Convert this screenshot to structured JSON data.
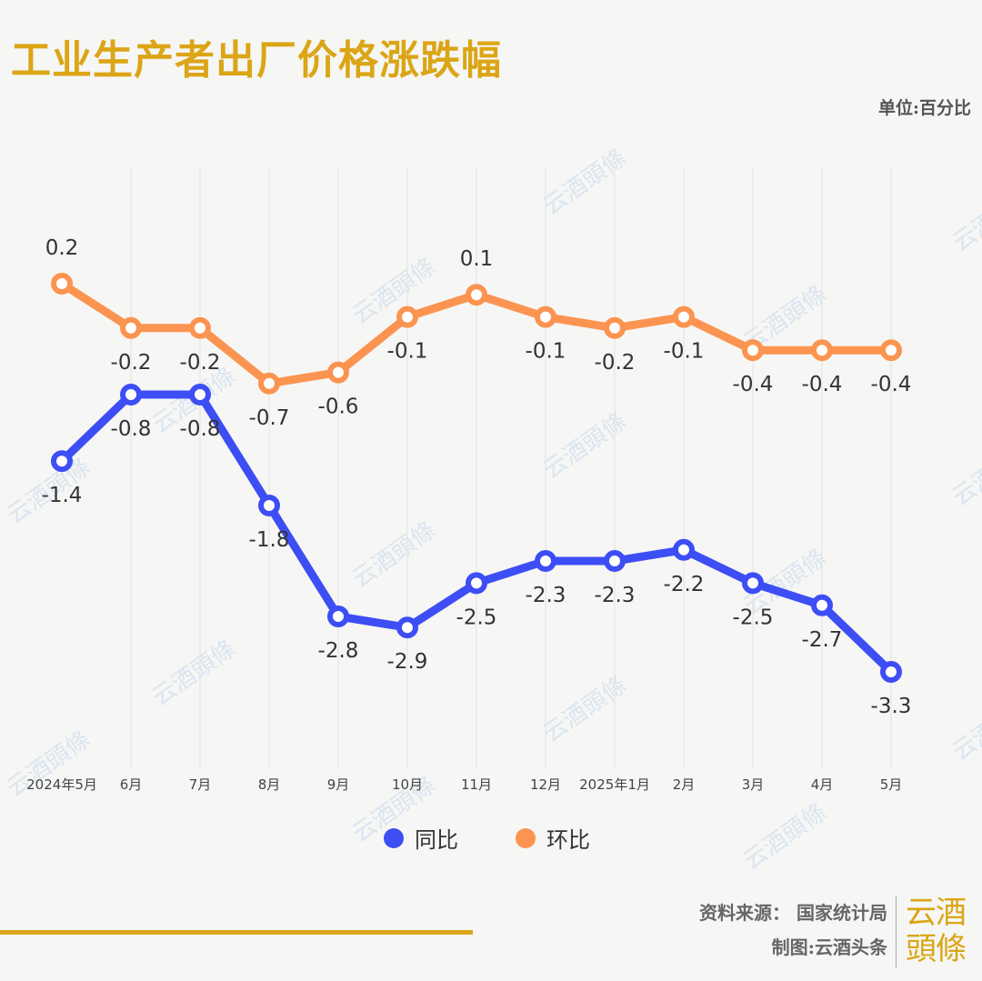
{
  "title": "工业生产者出厂价格涨跌幅",
  "unit": "单位:百分比",
  "watermark": "云酒頭條",
  "colors": {
    "title": "#dba515",
    "yoy": "#3d4ef5",
    "mom": "#fb9450",
    "grid": "#e2e2e2"
  },
  "chart_data": {
    "type": "line",
    "title": "工业生产者出厂价格涨跌幅",
    "xlabel": "",
    "ylabel": "",
    "categories": [
      "2024年5月",
      "6月",
      "7月",
      "8月",
      "9月",
      "10月",
      "11月",
      "12月",
      "2025年1月",
      "2月",
      "3月",
      "4月",
      "5月"
    ],
    "series": [
      {
        "name": "同比",
        "color": "#3d4ef5",
        "values": [
          -1.4,
          -0.8,
          -0.8,
          -1.8,
          -2.8,
          -2.9,
          -2.5,
          -2.3,
          -2.3,
          -2.2,
          -2.5,
          -2.7,
          -3.3
        ]
      },
      {
        "name": "环比",
        "color": "#fb9450",
        "values": [
          0.2,
          -0.2,
          -0.2,
          -0.7,
          -0.6,
          -0.1,
          0.1,
          -0.1,
          -0.2,
          -0.1,
          -0.4,
          -0.4,
          -0.4
        ]
      }
    ],
    "grid": "vertical",
    "legend": "bottom-center"
  },
  "footer": {
    "source": "资料来源： 国家统计局",
    "maker": "制图:云酒头条"
  },
  "logo": "云酒頭條"
}
